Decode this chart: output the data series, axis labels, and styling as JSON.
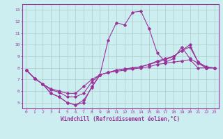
{
  "title": "",
  "xlabel": "Windchill (Refroidissement éolien,°C)",
  "ylabel": "",
  "xlim": [
    -0.5,
    23.5
  ],
  "ylim": [
    4.5,
    13.5
  ],
  "yticks": [
    5,
    6,
    7,
    8,
    9,
    10,
    11,
    12,
    13
  ],
  "xticks": [
    0,
    1,
    2,
    3,
    4,
    5,
    6,
    7,
    8,
    9,
    10,
    11,
    12,
    13,
    14,
    15,
    16,
    17,
    18,
    19,
    20,
    21,
    22,
    23
  ],
  "bg_color": "#cceef0",
  "line_color": "#993399",
  "grid_color": "#aacccc",
  "series": [
    {
      "x": [
        0,
        1,
        2,
        3,
        4,
        5,
        6,
        7,
        8,
        9,
        10,
        11,
        12,
        13,
        14,
        15,
        16,
        17,
        18,
        19,
        20,
        21,
        22,
        23
      ],
      "y": [
        7.8,
        7.1,
        6.6,
        5.8,
        5.5,
        5.0,
        4.8,
        5.0,
        6.4,
        7.4,
        7.6,
        7.7,
        7.8,
        7.9,
        8.0,
        8.1,
        8.3,
        8.4,
        8.5,
        8.6,
        8.7,
        8.0,
        8.0,
        8.0
      ]
    },
    {
      "x": [
        0,
        1,
        2,
        3,
        4,
        5,
        6,
        7,
        8,
        9,
        10,
        11,
        12,
        13,
        14,
        15,
        16,
        17,
        18,
        19,
        20,
        21,
        22,
        23
      ],
      "y": [
        7.8,
        7.1,
        6.6,
        6.2,
        6.0,
        5.8,
        5.8,
        6.4,
        7.0,
        7.4,
        7.6,
        7.8,
        7.9,
        8.0,
        8.1,
        8.3,
        8.6,
        8.8,
        9.0,
        9.5,
        9.8,
        8.5,
        8.1,
        8.0
      ]
    },
    {
      "x": [
        0,
        1,
        2,
        3,
        4,
        5,
        6,
        7,
        8,
        9,
        10,
        11,
        12,
        13,
        14,
        15,
        16,
        17,
        18,
        19,
        20,
        21,
        22,
        23
      ],
      "y": [
        7.8,
        7.1,
        6.6,
        5.8,
        5.5,
        5.0,
        4.8,
        5.2,
        6.3,
        7.4,
        10.4,
        11.9,
        11.7,
        12.8,
        12.9,
        11.4,
        9.3,
        8.5,
        8.8,
        9.8,
        8.8,
        8.4,
        8.0,
        8.0
      ]
    },
    {
      "x": [
        0,
        1,
        2,
        3,
        4,
        5,
        6,
        7,
        8,
        9,
        10,
        11,
        12,
        13,
        14,
        15,
        16,
        17,
        18,
        19,
        20,
        21,
        22,
        23
      ],
      "y": [
        7.8,
        7.1,
        6.6,
        6.1,
        5.9,
        5.5,
        5.5,
        5.8,
        6.8,
        7.4,
        7.6,
        7.8,
        7.9,
        8.0,
        8.1,
        8.3,
        8.5,
        8.7,
        9.0,
        9.5,
        10.0,
        8.5,
        8.0,
        8.0
      ]
    }
  ]
}
